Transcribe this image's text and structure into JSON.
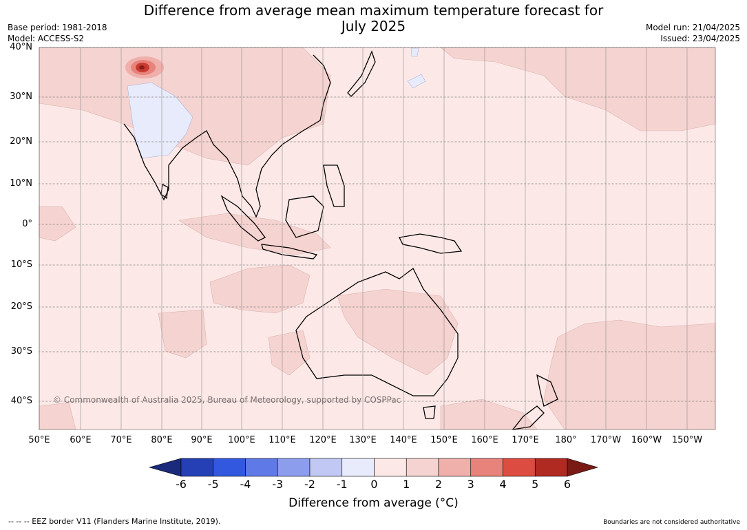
{
  "title": "Difference from average mean maximum temperature forecast for July 2025",
  "title_line1": "Difference from average mean maximum temperature forecast for",
  "title_line2": "July 2025",
  "base_period": "Base period: 1981-2018",
  "model": "Model: ACCESS-S2",
  "model_run": "Model run: 21/04/2025",
  "issued": "Issued: 23/04/2025",
  "lat_labels": [
    "40°N",
    "30°N",
    "20°N",
    "10°N",
    "0°",
    "10°S",
    "20°S",
    "30°S",
    "40°S"
  ],
  "lon_labels": [
    "50°E",
    "60°E",
    "70°E",
    "80°E",
    "90°E",
    "100°E",
    "110°E",
    "120°E",
    "130°E",
    "140°E",
    "150°E",
    "160°E",
    "170°E",
    "180°",
    "170°W",
    "160°W",
    "150°W"
  ],
  "copyright": "© Commonwealth of Australia 2025, Bureau of Meteorology, supported by COSPPac",
  "colorbar": {
    "ticks": [
      "-6",
      "-5",
      "-4",
      "-3",
      "-2",
      "-1",
      "0",
      "1",
      "2",
      "3",
      "4",
      "5",
      "6"
    ],
    "colors": [
      "#1b2a7a",
      "#2440b4",
      "#3358e0",
      "#5f79e6",
      "#8c9ded",
      "#c1c8f4",
      "#e8ebfb",
      "#fce9e7",
      "#f5d3d0",
      "#efafaa",
      "#e8837b",
      "#dc4c40",
      "#b12a22",
      "#7a1a14"
    ],
    "label": "Difference from average (°C)"
  },
  "eez_note": "--  --  -- EEZ border V11 (Flanders Marine Institute, 2019).",
  "boundary_note": "Boundaries are not considered authoritative",
  "colors": {
    "background_anomaly": "#fce9e7",
    "warm_anomaly": "#f5d3d0",
    "cool_anomaly": "#e8ebfb",
    "hot_spot": "#c93b31",
    "land_outline": "#000000",
    "grid_line": "#555555"
  }
}
